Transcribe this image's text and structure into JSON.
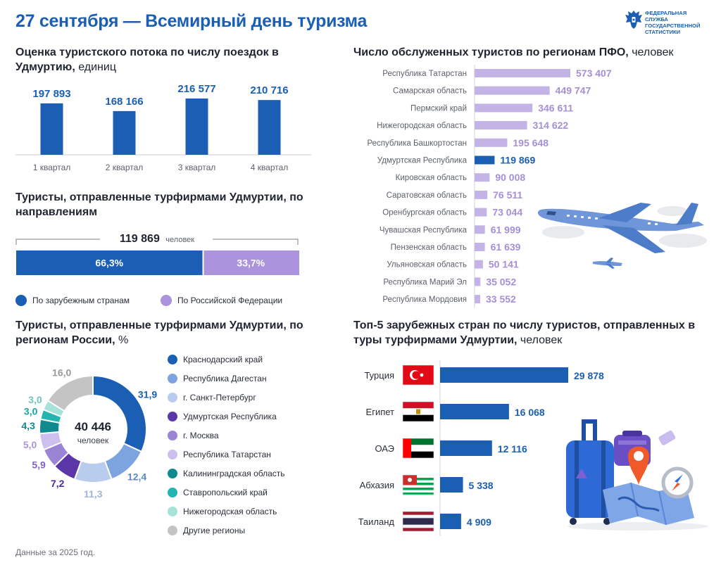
{
  "page": {
    "title": "27 сентября — Всемирный день туризма",
    "logo_lines": [
      "ФЕДЕРАЛЬНАЯ СЛУЖБА",
      "ГОСУДАРСТВЕННОЙ",
      "СТАТИСТИКИ"
    ],
    "footnote": "Данные за 2025 год."
  },
  "colors": {
    "primary": "#1a5fb4",
    "lilac": "#b9a6e0",
    "bar_lilac": "#c4b3e6",
    "label_lilac": "#a58fd6"
  },
  "chart_data": [
    {
      "type": "bar",
      "title": "Оценка туристского потока по числу поездок в Удмуртию,",
      "title_unit": "единиц",
      "categories": [
        "1 квартал",
        "2 квартал",
        "3 квартал",
        "4 квартал"
      ],
      "values": [
        197893,
        168166,
        216577,
        210716
      ],
      "value_labels": [
        "197 893",
        "168 166",
        "216 577",
        "210 716"
      ],
      "ylim": [
        0,
        216577
      ]
    },
    {
      "type": "bar",
      "orientation": "horizontal-stacked",
      "title": "Туристы, отправленные турфирмами Удмуртии, по направлениям",
      "total": "119 869",
      "total_unit": "человек",
      "series": [
        {
          "name": "По зарубежным странам",
          "value": 66.3,
          "label": "66,3%",
          "color": "#1a5fb4"
        },
        {
          "name": "По Российской Федерации",
          "value": 33.7,
          "label": "33,7%",
          "color": "#ab93dd"
        }
      ]
    },
    {
      "type": "pie",
      "title": "Туристы, отправленные турфирмами Удмуртии, по регионам России,",
      "title_unit": "%",
      "center_value": "40 446",
      "center_unit": "человек",
      "slices": [
        {
          "name": "Краснодарский край",
          "value": 31.9,
          "label": "31,9",
          "color": "#1a5fb4"
        },
        {
          "name": "Республика Дагестан",
          "value": 12.4,
          "label": "12,4",
          "color": "#7ea4e0"
        },
        {
          "name": "г. Санкт-Петербург",
          "value": 11.3,
          "label": "11,3",
          "color": "#b8cdee"
        },
        {
          "name": "Удмуртская Республика",
          "value": 7.2,
          "label": "7,2",
          "color": "#5b36a8"
        },
        {
          "name": "г. Москва",
          "value": 5.9,
          "label": "5,9",
          "color": "#9c84d4"
        },
        {
          "name": "Республика Татарстан",
          "value": 5.0,
          "label": "5,0",
          "color": "#cdbfee"
        },
        {
          "name": "Калининградская область",
          "value": 4.3,
          "label": "4,3",
          "color": "#0f8a8f"
        },
        {
          "name": "Ставропольский край",
          "value": 3.0,
          "label": "3,0",
          "color": "#24b5b0"
        },
        {
          "name": "Нижегородская область",
          "value": 3.0,
          "label": "3,0",
          "color": "#a6e2d8"
        },
        {
          "name": "Другие регионы",
          "value": 16.0,
          "label": "16,0",
          "color": "#c4c4c4"
        }
      ]
    },
    {
      "type": "bar",
      "orientation": "horizontal",
      "title": "Число обслуженных туристов по регионам ПФО,",
      "title_unit": "человек",
      "categories": [
        "Республика Татарстан",
        "Самарская область",
        "Пермский край",
        "Нижегородская область",
        "Республика Башкортостан",
        "Удмуртская Республика",
        "Кировская область",
        "Саратовская область",
        "Оренбургская область",
        "Чувашская Республика",
        "Пензенская область",
        "Ульяновская область",
        "Республика Марий Эл",
        "Республика Мордовия"
      ],
      "values": [
        573407,
        449747,
        346611,
        314622,
        195648,
        119869,
        90008,
        76511,
        73044,
        61999,
        61639,
        50141,
        35052,
        33552
      ],
      "value_labels": [
        "573 407",
        "449 747",
        "346 611",
        "314 622",
        "195 648",
        "119 869",
        "90 008",
        "76 511",
        "73 044",
        "61 999",
        "61 639",
        "50 141",
        "35 052",
        "33 552"
      ],
      "highlight_index": 5
    },
    {
      "type": "bar",
      "orientation": "horizontal",
      "title": "Топ-5 зарубежных стран по числу туристов, отправленных в туры турфирмами Удмуртии,",
      "title_unit": "человек",
      "categories": [
        "Турция",
        "Египет",
        "ОАЭ",
        "Абхазия",
        "Таиланд"
      ],
      "flags": [
        "flag-turkey",
        "flag-egypt",
        "flag-uae",
        "flag-abkhazia",
        "flag-thailand"
      ],
      "values": [
        29878,
        16068,
        12116,
        5338,
        4909
      ],
      "value_labels": [
        "29 878",
        "16 068",
        "12 116",
        "5 338",
        "4 909"
      ]
    }
  ]
}
